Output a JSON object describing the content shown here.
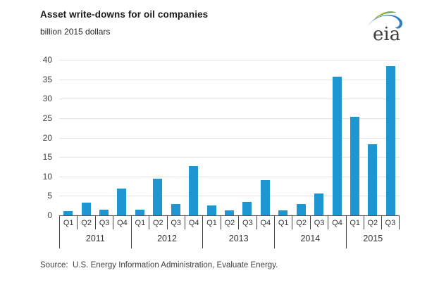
{
  "header": {
    "title": "Asset write-downs for oil companies",
    "subtitle": "billion 2015 dollars"
  },
  "logo": {
    "text": "eia"
  },
  "chart_data": {
    "type": "bar",
    "title": "Asset write-downs for oil companies",
    "ylabel": "billion 2015 dollars",
    "xlabel": "",
    "ylim": [
      0,
      40
    ],
    "yticks": [
      0,
      5,
      10,
      15,
      20,
      25,
      30,
      35,
      40
    ],
    "grid": true,
    "legend": "none",
    "bar_color": "#1E96D2",
    "groups": [
      {
        "year": "2011",
        "quarters": [
          "Q1",
          "Q2",
          "Q3",
          "Q4"
        ],
        "values": [
          1.0,
          3.2,
          1.4,
          6.8
        ]
      },
      {
        "year": "2012",
        "quarters": [
          "Q1",
          "Q2",
          "Q3",
          "Q4"
        ],
        "values": [
          1.5,
          9.4,
          2.9,
          12.6
        ]
      },
      {
        "year": "2013",
        "quarters": [
          "Q1",
          "Q2",
          "Q3",
          "Q4"
        ],
        "values": [
          2.5,
          1.3,
          3.4,
          9.1
        ]
      },
      {
        "year": "2014",
        "quarters": [
          "Q1",
          "Q2",
          "Q3",
          "Q4"
        ],
        "values": [
          1.2,
          2.9,
          5.6,
          35.7
        ]
      },
      {
        "year": "2015",
        "quarters": [
          "Q1",
          "Q2",
          "Q3"
        ],
        "values": [
          25.3,
          18.2,
          38.3
        ]
      }
    ]
  },
  "source": {
    "text": "Source:  U.S. Energy Information Administration, Evaluate Energy."
  },
  "colors": {
    "bar": "#1E96D2",
    "gridline": "#e3e3e3",
    "axis": "#58595b",
    "logo_green": "#55a033",
    "logo_yellow": "#c9bc2c",
    "logo_blue": "#2e7fc1"
  }
}
